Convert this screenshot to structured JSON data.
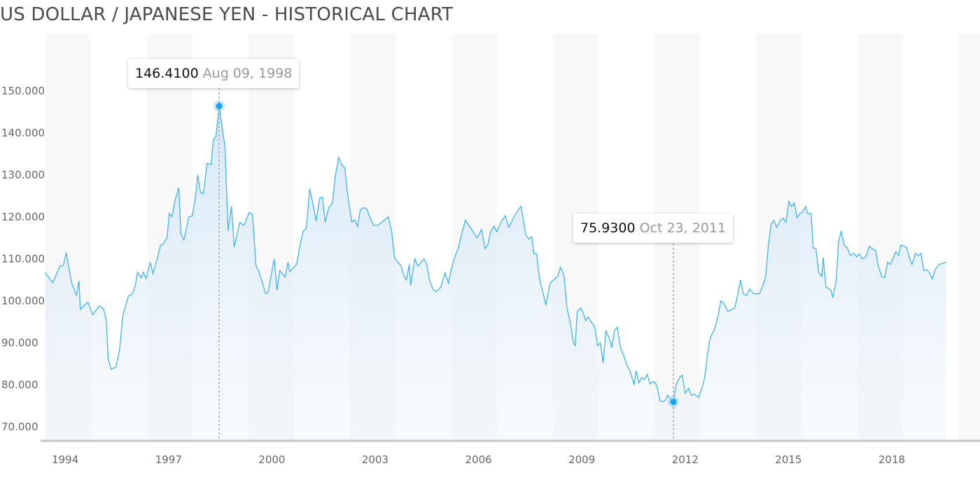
{
  "title": "US DOLLAR / JAPANESE YEN - HISTORICAL CHART",
  "chart_data": {
    "type": "area",
    "title": "US DOLLAR / JAPANESE YEN - HISTORICAL CHART",
    "xlabel": "",
    "ylabel": "",
    "ylim": [
      67,
      160
    ],
    "xlim": [
      1993.56,
      2019.75
    ],
    "grid": "alternating vertical bands",
    "line_color": "#3fb4f5",
    "fill_color": "#d6e9f6",
    "y_ticks": [
      "70.000",
      "80.000",
      "90.000",
      "100.000",
      "110.000",
      "120.000",
      "130.000",
      "140.000",
      "150.000"
    ],
    "y_tick_values": [
      70,
      80,
      90,
      100,
      110,
      120,
      130,
      140,
      150
    ],
    "x_ticks": [
      "1994",
      "1997",
      "2000",
      "2003",
      "2006",
      "2009",
      "2012",
      "2015",
      "2018"
    ],
    "annotations": [
      {
        "value_label": "146.4100",
        "date_label": "Aug 09, 1998",
        "x": 1998.61,
        "y": 146.41,
        "kind": "max"
      },
      {
        "value_label": "75.9300",
        "date_label": "Oct 23, 2011",
        "x": 2011.8,
        "y": 75.93,
        "kind": "min"
      }
    ],
    "points": [
      [
        1993.56,
        106.7
      ],
      [
        1993.78,
        104.3
      ],
      [
        1993.99,
        108.3
      ],
      [
        1994.09,
        108.5
      ],
      [
        1994.17,
        111.5
      ],
      [
        1994.33,
        104.2
      ],
      [
        1994.47,
        101.3
      ],
      [
        1994.54,
        104.8
      ],
      [
        1994.58,
        98.0
      ],
      [
        1994.8,
        99.7
      ],
      [
        1994.94,
        96.7
      ],
      [
        1995.13,
        98.8
      ],
      [
        1995.25,
        98.2
      ],
      [
        1995.33,
        95.5
      ],
      [
        1995.39,
        86.2
      ],
      [
        1995.47,
        83.7
      ],
      [
        1995.61,
        84.2
      ],
      [
        1995.72,
        88.3
      ],
      [
        1995.82,
        96.7
      ],
      [
        1995.98,
        101.2
      ],
      [
        1996.08,
        101.5
      ],
      [
        1996.18,
        103.7
      ],
      [
        1996.24,
        106.8
      ],
      [
        1996.35,
        105.5
      ],
      [
        1996.41,
        106.8
      ],
      [
        1996.49,
        105.3
      ],
      [
        1996.61,
        109.2
      ],
      [
        1996.69,
        106.5
      ],
      [
        1996.81,
        110.0
      ],
      [
        1996.91,
        113.3
      ],
      [
        1996.98,
        113.5
      ],
      [
        1997.1,
        115.0
      ],
      [
        1997.16,
        120.8
      ],
      [
        1997.24,
        120.0
      ],
      [
        1997.34,
        124.2
      ],
      [
        1997.44,
        127.0
      ],
      [
        1997.5,
        116.0
      ],
      [
        1997.59,
        114.5
      ],
      [
        1997.73,
        120.0
      ],
      [
        1997.83,
        120.2
      ],
      [
        1997.93,
        125.2
      ],
      [
        1997.99,
        130.0
      ],
      [
        1998.07,
        125.8
      ],
      [
        1998.15,
        125.5
      ],
      [
        1998.26,
        132.7
      ],
      [
        1998.38,
        132.5
      ],
      [
        1998.44,
        138.3
      ],
      [
        1998.52,
        139.2
      ],
      [
        1998.61,
        146.41
      ],
      [
        1998.78,
        136.7
      ],
      [
        1998.87,
        116.7
      ],
      [
        1998.97,
        122.5
      ],
      [
        1999.05,
        112.8
      ],
      [
        1999.21,
        118.7
      ],
      [
        1999.33,
        118.0
      ],
      [
        1999.48,
        121.0
      ],
      [
        1999.58,
        120.7
      ],
      [
        1999.68,
        108.5
      ],
      [
        1999.78,
        106.7
      ],
      [
        1999.96,
        101.7
      ],
      [
        2000.03,
        102.0
      ],
      [
        2000.21,
        110.0
      ],
      [
        2000.29,
        102.5
      ],
      [
        2000.37,
        107.2
      ],
      [
        2000.53,
        105.7
      ],
      [
        2000.61,
        109.2
      ],
      [
        2000.66,
        107.0
      ],
      [
        2000.86,
        108.7
      ],
      [
        2000.98,
        114.2
      ],
      [
        2001.06,
        116.7
      ],
      [
        2001.14,
        117.2
      ],
      [
        2001.24,
        126.7
      ],
      [
        2001.33,
        123.3
      ],
      [
        2001.43,
        119.0
      ],
      [
        2001.53,
        124.5
      ],
      [
        2001.61,
        124.7
      ],
      [
        2001.69,
        118.7
      ],
      [
        2001.79,
        122.2
      ],
      [
        2001.9,
        123.3
      ],
      [
        2001.98,
        129.5
      ],
      [
        2002.08,
        134.2
      ],
      [
        2002.18,
        132.3
      ],
      [
        2002.26,
        131.7
      ],
      [
        2002.34,
        125.5
      ],
      [
        2002.46,
        118.8
      ],
      [
        2002.55,
        119.3
      ],
      [
        2002.63,
        117.7
      ],
      [
        2002.71,
        121.7
      ],
      [
        2002.81,
        122.2
      ],
      [
        2002.89,
        122.0
      ],
      [
        2003.01,
        119.5
      ],
      [
        2003.09,
        118.0
      ],
      [
        2003.22,
        118.0
      ],
      [
        2003.4,
        119.2
      ],
      [
        2003.52,
        120.0
      ],
      [
        2003.62,
        116.7
      ],
      [
        2003.7,
        110.3
      ],
      [
        2003.89,
        108.3
      ],
      [
        2003.97,
        106.2
      ],
      [
        2004.05,
        105.0
      ],
      [
        2004.13,
        108.7
      ],
      [
        2004.17,
        103.7
      ],
      [
        2004.29,
        110.0
      ],
      [
        2004.38,
        108.3
      ],
      [
        2004.56,
        110.0
      ],
      [
        2004.64,
        108.7
      ],
      [
        2004.72,
        105.0
      ],
      [
        2004.82,
        102.7
      ],
      [
        2004.92,
        102.2
      ],
      [
        2005.05,
        103.3
      ],
      [
        2005.17,
        106.7
      ],
      [
        2005.27,
        104.2
      ],
      [
        2005.35,
        107.5
      ],
      [
        2005.45,
        110.3
      ],
      [
        2005.55,
        112.5
      ],
      [
        2005.66,
        116.2
      ],
      [
        2005.76,
        119.2
      ],
      [
        2005.9,
        117.5
      ],
      [
        2006.1,
        115.0
      ],
      [
        2006.23,
        117.0
      ],
      [
        2006.33,
        112.5
      ],
      [
        2006.41,
        113.3
      ],
      [
        2006.49,
        116.3
      ],
      [
        2006.59,
        117.8
      ],
      [
        2006.67,
        116.5
      ],
      [
        2006.79,
        118.7
      ],
      [
        2006.92,
        120.3
      ],
      [
        2007.02,
        117.5
      ],
      [
        2007.14,
        119.5
      ],
      [
        2007.26,
        121.3
      ],
      [
        2007.38,
        122.5
      ],
      [
        2007.51,
        115.8
      ],
      [
        2007.61,
        114.7
      ],
      [
        2007.69,
        115.3
      ],
      [
        2007.75,
        111.2
      ],
      [
        2007.83,
        111.3
      ],
      [
        2007.91,
        105.3
      ],
      [
        2008.0,
        102.5
      ],
      [
        2008.1,
        99.0
      ],
      [
        2008.14,
        100.8
      ],
      [
        2008.22,
        104.2
      ],
      [
        2008.32,
        105.0
      ],
      [
        2008.44,
        105.8
      ],
      [
        2008.52,
        108.0
      ],
      [
        2008.62,
        106.3
      ],
      [
        2008.71,
        98.3
      ],
      [
        2008.81,
        94.7
      ],
      [
        2008.89,
        90.3
      ],
      [
        2008.95,
        89.2
      ],
      [
        2009.01,
        97.5
      ],
      [
        2009.11,
        98.3
      ],
      [
        2009.19,
        97.0
      ],
      [
        2009.25,
        95.3
      ],
      [
        2009.32,
        96.2
      ],
      [
        2009.52,
        93.7
      ],
      [
        2009.6,
        89.3
      ],
      [
        2009.68,
        90.0
      ],
      [
        2009.76,
        85.2
      ],
      [
        2009.84,
        93.0
      ],
      [
        2009.95,
        90.8
      ],
      [
        2010.01,
        88.8
      ],
      [
        2010.09,
        93.0
      ],
      [
        2010.17,
        93.7
      ],
      [
        2010.27,
        88.7
      ],
      [
        2010.37,
        86.7
      ],
      [
        2010.45,
        84.7
      ],
      [
        2010.54,
        83.3
      ],
      [
        2010.66,
        80.0
      ],
      [
        2010.72,
        83.3
      ],
      [
        2010.8,
        80.5
      ],
      [
        2010.88,
        81.7
      ],
      [
        2010.96,
        81.3
      ],
      [
        2011.04,
        82.5
      ],
      [
        2011.12,
        80.3
      ],
      [
        2011.23,
        80.8
      ],
      [
        2011.31,
        80.0
      ],
      [
        2011.41,
        76.3
      ],
      [
        2011.49,
        76.0
      ],
      [
        2011.57,
        76.3
      ],
      [
        2011.63,
        77.5
      ],
      [
        2011.73,
        76.7
      ],
      [
        2011.8,
        75.93
      ],
      [
        2011.88,
        80.0
      ],
      [
        2011.98,
        81.7
      ],
      [
        2012.06,
        82.3
      ],
      [
        2012.14,
        78.0
      ],
      [
        2012.24,
        79.2
      ],
      [
        2012.32,
        77.5
      ],
      [
        2012.41,
        77.8
      ],
      [
        2012.53,
        77.0
      ],
      [
        2012.63,
        79.2
      ],
      [
        2012.71,
        81.7
      ],
      [
        2012.79,
        87.3
      ],
      [
        2012.87,
        91.2
      ],
      [
        2013.0,
        93.3
      ],
      [
        2013.08,
        95.8
      ],
      [
        2013.18,
        100.0
      ],
      [
        2013.28,
        99.2
      ],
      [
        2013.38,
        97.5
      ],
      [
        2013.58,
        98.3
      ],
      [
        2013.65,
        100.8
      ],
      [
        2013.75,
        105.0
      ],
      [
        2013.83,
        101.7
      ],
      [
        2013.93,
        101.3
      ],
      [
        2014.01,
        102.8
      ],
      [
        2014.13,
        101.7
      ],
      [
        2014.3,
        101.7
      ],
      [
        2014.4,
        103.7
      ],
      [
        2014.48,
        105.8
      ],
      [
        2014.56,
        113.3
      ],
      [
        2014.64,
        118.3
      ],
      [
        2014.72,
        119.2
      ],
      [
        2014.8,
        117.5
      ],
      [
        2014.91,
        119.2
      ],
      [
        2014.99,
        119.7
      ],
      [
        2015.07,
        118.7
      ],
      [
        2015.15,
        123.7
      ],
      [
        2015.23,
        122.5
      ],
      [
        2015.31,
        123.3
      ],
      [
        2015.39,
        119.8
      ],
      [
        2015.47,
        120.8
      ],
      [
        2015.55,
        121.2
      ],
      [
        2015.64,
        122.5
      ],
      [
        2015.7,
        120.8
      ],
      [
        2015.8,
        120.8
      ],
      [
        2015.86,
        112.5
      ],
      [
        2015.94,
        112.5
      ],
      [
        2016.02,
        106.7
      ],
      [
        2016.11,
        105.8
      ],
      [
        2016.15,
        110.3
      ],
      [
        2016.23,
        103.3
      ],
      [
        2016.37,
        102.5
      ],
      [
        2016.43,
        100.8
      ],
      [
        2016.53,
        105.0
      ],
      [
        2016.59,
        113.7
      ],
      [
        2016.67,
        116.7
      ],
      [
        2016.76,
        113.3
      ],
      [
        2016.86,
        112.5
      ],
      [
        2016.94,
        110.8
      ],
      [
        2017.04,
        111.3
      ],
      [
        2017.12,
        110.5
      ],
      [
        2017.2,
        111.2
      ],
      [
        2017.28,
        110.0
      ],
      [
        2017.39,
        110.5
      ],
      [
        2017.49,
        113.0
      ],
      [
        2017.59,
        112.3
      ],
      [
        2017.67,
        112.0
      ],
      [
        2017.75,
        108.3
      ],
      [
        2017.85,
        105.8
      ],
      [
        2017.94,
        105.5
      ],
      [
        2018.02,
        109.2
      ],
      [
        2018.1,
        108.7
      ],
      [
        2018.26,
        111.7
      ],
      [
        2018.34,
        110.8
      ],
      [
        2018.4,
        113.3
      ],
      [
        2018.57,
        112.8
      ],
      [
        2018.65,
        110.3
      ],
      [
        2018.73,
        108.7
      ],
      [
        2018.83,
        111.3
      ],
      [
        2018.91,
        110.7
      ],
      [
        2018.99,
        111.3
      ],
      [
        2019.07,
        107.2
      ],
      [
        2019.15,
        107.5
      ],
      [
        2019.24,
        106.7
      ],
      [
        2019.32,
        105.2
      ],
      [
        2019.4,
        107.5
      ],
      [
        2019.52,
        108.7
      ],
      [
        2019.72,
        109.2
      ]
    ]
  }
}
